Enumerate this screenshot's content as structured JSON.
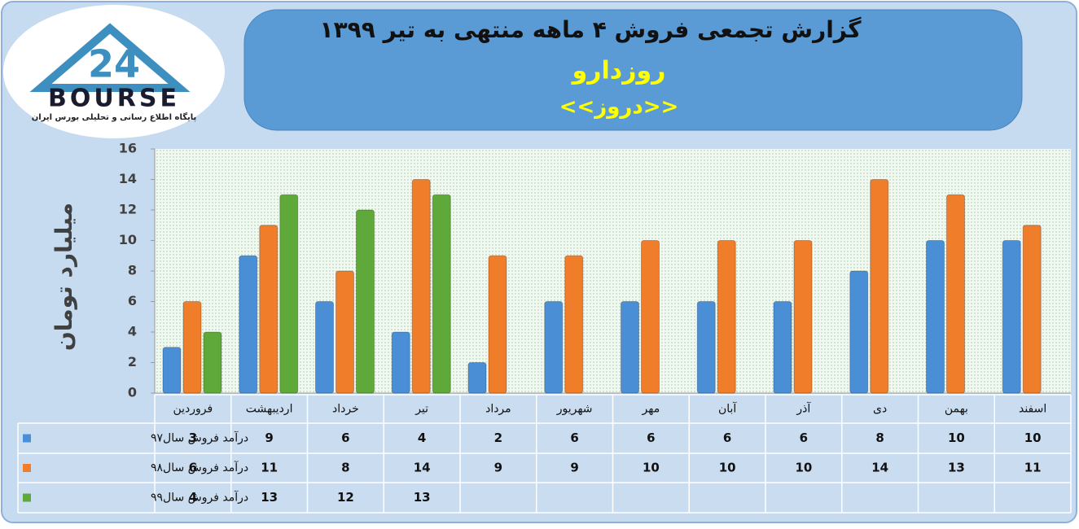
{
  "logo": {
    "text": "BOURSE",
    "tagline": "پایگاه اطلاع رسانی و تحلیلی بورس ایران"
  },
  "chart_data": {
    "type": "bar",
    "title": "گزارش تجمعی فروش  ۴ ماهه منتهی به تیر ۱۳۹۹",
    "subtitle": "روزدارو",
    "ticker": "<<دروز>>",
    "y_label": "میلیارد تومان",
    "categories": [
      "فروردین",
      "اردیبهشت",
      "خرداد",
      "تیر",
      "مرداد",
      "شهریور",
      "مهر",
      "آبان",
      "آذر",
      "دی",
      "بهمن",
      "اسفند"
    ],
    "series": [
      {
        "name": "درآمد فروش سال۹۷",
        "color": "#4a8fd6",
        "values": [
          3,
          9,
          6,
          4,
          2,
          6,
          6,
          6,
          6,
          8,
          10,
          10
        ]
      },
      {
        "name": "درآمد فروش سال۹۸",
        "color": "#f07d2a",
        "values": [
          6,
          11,
          8,
          14,
          9,
          9,
          10,
          10,
          10,
          14,
          13,
          11
        ]
      },
      {
        "name": "درآمد فروش سال۹۹",
        "color": "#5fa83a",
        "values": [
          4,
          13,
          12,
          13,
          null,
          null,
          null,
          null,
          null,
          null,
          null,
          null
        ]
      }
    ],
    "ylim": [
      0,
      16
    ],
    "yticks": [
      0,
      2,
      4,
      6,
      8,
      10,
      12,
      14,
      16
    ],
    "grid": false
  }
}
